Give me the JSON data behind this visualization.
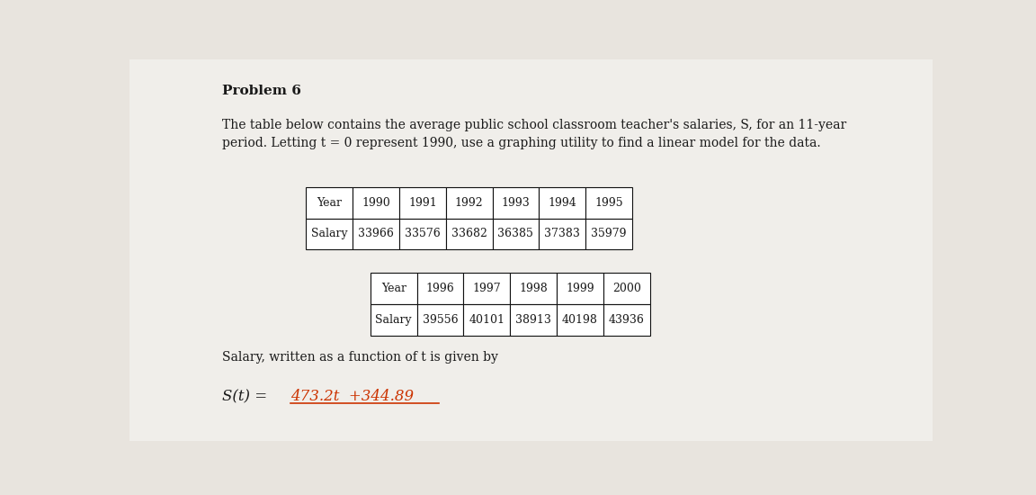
{
  "title": "Problem 6",
  "paragraph_line1": "The table below contains the average public school classroom teacher's salaries, S, for an 11-year",
  "paragraph_line2": "period. Letting t = 0 represent 1990, use a graphing utility to find a linear model for the data.",
  "table1_headers": [
    "Year",
    "1990",
    "1991",
    "1992",
    "1993",
    "1994",
    "1995"
  ],
  "table1_row": [
    "Salary",
    "33966",
    "33576",
    "33682",
    "36385",
    "37383",
    "35979"
  ],
  "table2_headers": [
    "Year",
    "1996",
    "1997",
    "1998",
    "1999",
    "2000"
  ],
  "table2_row": [
    "Salary",
    "39556",
    "40101",
    "38913",
    "40198",
    "43936"
  ],
  "salary_label": "Salary, written as a function of t is given by",
  "st_prefix": "S(t) = ",
  "st_value": "473.2t  +344.89",
  "bg_color": "#e8e4de",
  "paper_color": "#f0eeea",
  "text_color": "#1a1a1a",
  "answer_color": "#cc3300",
  "title_fontsize": 11,
  "para_fontsize": 10,
  "table_fontsize": 9,
  "answer_fontsize": 12
}
